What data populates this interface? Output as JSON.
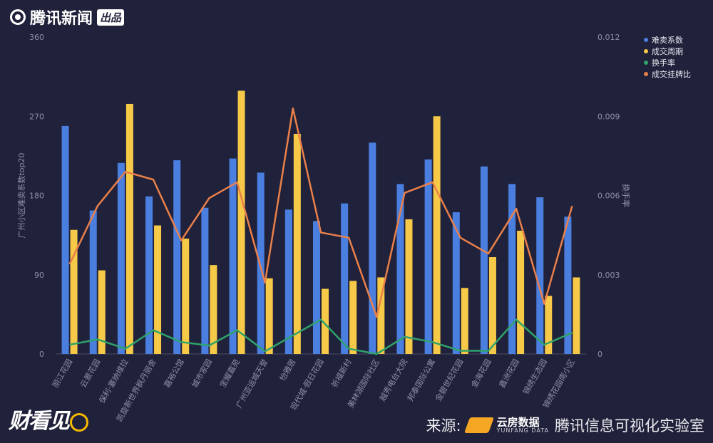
{
  "header": {
    "brand": "腾讯新闻",
    "badge": "出品"
  },
  "footer": {
    "show_logo": "财看见",
    "source_label": "来源:",
    "source_brand": "云房数据",
    "source_brand_en": "YUNFANG DATA",
    "publisher": "腾讯信息可视化实验室"
  },
  "chart_data": {
    "type": "bar",
    "categories": [
      "丽江花园",
      "云景花园",
      "保利·塞纳维拉",
      "凯旋新世界枫丹丽舍",
      "嘉裕公馆",
      "城市家园",
      "宝耀嘉苑",
      "广州亚运城天誉",
      "怡雅居",
      "现代城·假日花园",
      "祈福新村",
      "美林湖国际社区",
      "越秀电台大院",
      "邦泰国际公寓",
      "金碧世纪花园",
      "金海花园",
      "鑫洲花园",
      "锦绣生态园",
      "锦绣花园南小区"
    ],
    "series": [
      {
        "name": "难卖系数",
        "type": "bar",
        "axis": "left",
        "color": "#4a7fe0",
        "values": [
          259,
          163,
          217,
          179,
          220,
          166,
          222,
          206,
          164,
          151,
          171,
          240,
          193,
          221,
          161,
          213,
          193,
          178,
          156
        ]
      },
      {
        "name": "成交周期",
        "type": "bar",
        "axis": "left",
        "color": "#f7c948",
        "values": [
          141,
          95,
          284,
          146,
          131,
          101,
          299,
          86,
          250,
          74,
          83,
          87,
          153,
          270,
          75,
          110,
          140,
          66,
          87
        ]
      },
      {
        "name": "换手率",
        "type": "line",
        "axis": "right",
        "color": "#2ea36b",
        "values": [
          0.00035,
          0.00055,
          0.0002,
          0.0009,
          0.00045,
          0.00032,
          0.0009,
          0.0001,
          0.0007,
          0.0013,
          0.0002,
          0.0,
          0.00065,
          0.00045,
          0.00012,
          0.00012,
          0.0013,
          0.00035,
          0.0008
        ]
      },
      {
        "name": "成交挂牌比",
        "type": "line",
        "axis": "right",
        "color": "#e9804a",
        "values": [
          0.0034,
          0.0056,
          0.0069,
          0.0066,
          0.0043,
          0.0059,
          0.0065,
          0.0027,
          0.0093,
          0.0046,
          0.0044,
          0.0014,
          0.0061,
          0.0065,
          0.0044,
          0.0038,
          0.0055,
          0.0019,
          0.0056
        ]
      }
    ],
    "ylabel_left": "广州小区难卖系数top20",
    "ylabel_right": "换手率",
    "ylim_left": [
      0,
      360
    ],
    "ylim_right": [
      0,
      0.012
    ],
    "yticks_left": [
      "0",
      "90",
      "180",
      "270",
      "360"
    ],
    "yticks_right": [
      "0",
      "0.003",
      "0.006",
      "0.009",
      "0.012"
    ],
    "grid": false,
    "legend_position": "top-right"
  }
}
